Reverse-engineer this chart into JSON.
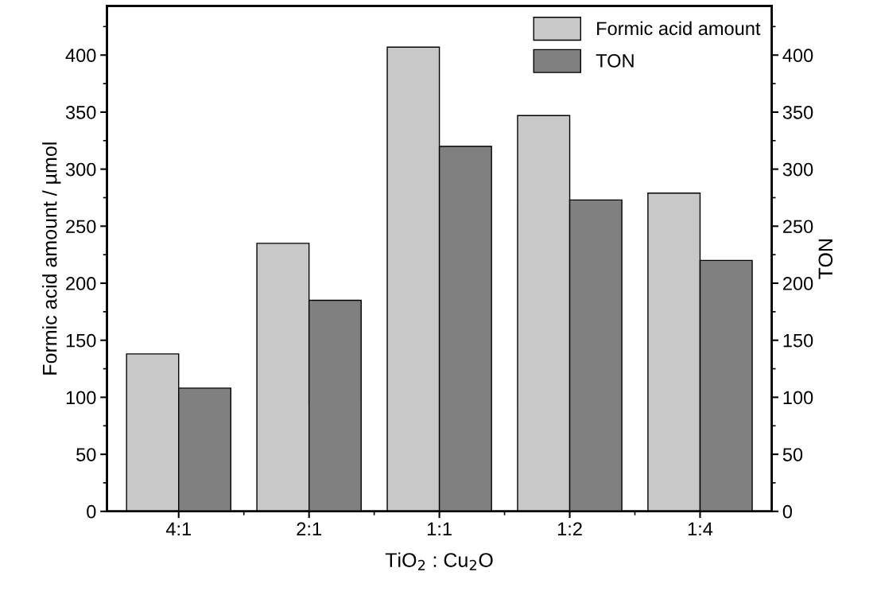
{
  "chart_data": {
    "type": "bar",
    "xlabel": "TiO$_{2}$ : Cu$_{2}$O",
    "ylabel": "Formic acid amount / µmol",
    "y2label": "TON",
    "categories": [
      "4:1",
      "2:1",
      "1:1",
      "1:2",
      "1:4"
    ],
    "series": [
      {
        "name": "Formic acid amount",
        "color": "#c8c8c8",
        "values": [
          138,
          235,
          407,
          347,
          279
        ]
      },
      {
        "name": "TON",
        "color": "#808080",
        "values": [
          108,
          185,
          320,
          273,
          220
        ],
        "axis": "y2"
      }
    ],
    "ylim": [
      0,
      443
    ],
    "yticks": [
      0,
      {
        "value": 25,
        "label": null
      },
      50,
      {
        "value": 75,
        "label": null
      },
      100,
      {
        "value": 125,
        "label": null
      },
      150,
      {
        "value": 175,
        "label": null
      },
      200,
      {
        "value": 225,
        "label": null
      },
      250,
      {
        "value": 275,
        "label": null
      },
      300,
      {
        "value": 325,
        "label": null
      },
      350,
      {
        "value": 375,
        "label": null
      },
      400,
      {
        "value": 425,
        "label": null
      }
    ],
    "y2lim": [
      0,
      443
    ],
    "y2ticks": [
      0,
      {
        "value": 25,
        "label": null
      },
      50,
      {
        "value": 75,
        "label": null
      },
      100,
      {
        "value": 125,
        "label": null
      },
      150,
      {
        "value": 175,
        "label": null
      },
      200,
      {
        "value": 225,
        "label": null
      },
      250,
      {
        "value": 275,
        "label": null
      },
      300,
      {
        "value": 325,
        "label": null
      },
      350,
      {
        "value": 375,
        "label": null
      },
      400,
      {
        "value": 425,
        "label": null
      }
    ],
    "legend": "top right",
    "grid": false
  }
}
